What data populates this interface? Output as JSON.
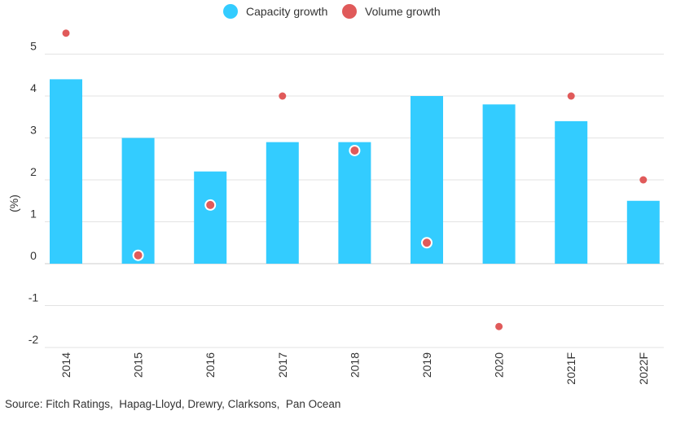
{
  "chart_data": {
    "type": "bar",
    "categories": [
      "2014",
      "2015",
      "2016",
      "2017",
      "2018",
      "2019",
      "2020",
      "2021F",
      "2022F"
    ],
    "series": [
      {
        "name": "Capacity growth",
        "kind": "bar",
        "color": "#33ccff",
        "values": [
          4.4,
          3.0,
          2.2,
          2.9,
          2.9,
          4.0,
          3.8,
          3.4,
          1.5
        ]
      },
      {
        "name": "Volume growth",
        "kind": "scatter",
        "color": "#e05a5a",
        "values": [
          5.5,
          0.2,
          1.4,
          4.0,
          2.7,
          0.5,
          -1.5,
          4.0,
          2.0
        ]
      }
    ],
    "ylabel": "(%)",
    "ylim": [
      -2,
      5.5
    ],
    "yticks": [
      "5",
      "4",
      "3",
      "2",
      "1",
      "0",
      "-1",
      "-2"
    ],
    "ytick_values": [
      5,
      4,
      3,
      2,
      1,
      0,
      -1,
      -2
    ],
    "grid": true,
    "legend_position": "top-center"
  },
  "source_text": "Source: Fitch Ratings,  Hapag-Lloyd, Drewry, Clarksons,  Pan Ocean"
}
